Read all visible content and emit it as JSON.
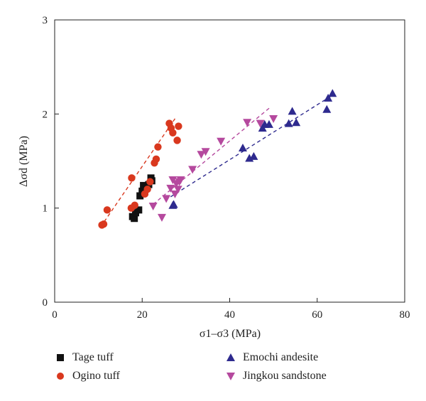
{
  "chart_data": {
    "type": "scatter",
    "xlabel": "σ1–σ3 (MPa)",
    "ylabel": "Δσd (MPa)",
    "xlim": [
      0,
      80
    ],
    "ylim": [
      0,
      3
    ],
    "xticks": [
      0,
      20,
      40,
      60,
      80
    ],
    "yticks": [
      0,
      1,
      2,
      3
    ],
    "grid": false,
    "legend_position": "bottom",
    "series": [
      {
        "name": "Tage tuff",
        "marker": "square",
        "color": "#111111",
        "points": [
          [
            17.8,
            0.91
          ],
          [
            18.2,
            0.89
          ],
          [
            18.5,
            0.95
          ],
          [
            19.2,
            0.98
          ],
          [
            19.5,
            1.13
          ],
          [
            20.0,
            1.18
          ],
          [
            20.3,
            1.24
          ],
          [
            21.0,
            1.22
          ],
          [
            21.5,
            1.25
          ],
          [
            22.0,
            1.32
          ],
          [
            22.2,
            1.29
          ]
        ]
      },
      {
        "name": "Ogino tuff",
        "marker": "circle",
        "color": "#d9381e",
        "points": [
          [
            10.8,
            0.82
          ],
          [
            11.2,
            0.83
          ],
          [
            12.0,
            0.98
          ],
          [
            17.5,
            1.0
          ],
          [
            17.6,
            1.32
          ],
          [
            18.3,
            1.03
          ],
          [
            20.6,
            1.15
          ],
          [
            21.2,
            1.2
          ],
          [
            21.8,
            1.28
          ],
          [
            22.8,
            1.48
          ],
          [
            23.2,
            1.52
          ],
          [
            23.6,
            1.65
          ],
          [
            26.2,
            1.9
          ],
          [
            26.6,
            1.85
          ],
          [
            27.0,
            1.8
          ],
          [
            28.0,
            1.72
          ],
          [
            28.3,
            1.87
          ]
        ],
        "fit": [
          [
            10.5,
            0.8
          ],
          [
            27.5,
            1.95
          ]
        ]
      },
      {
        "name": "Emochi andesite",
        "marker": "triangle-up",
        "color": "#2e2a8e",
        "points": [
          [
            27.0,
            1.03
          ],
          [
            27.2,
            1.04
          ],
          [
            43.0,
            1.64
          ],
          [
            44.5,
            1.53
          ],
          [
            45.5,
            1.55
          ],
          [
            47.5,
            1.85
          ],
          [
            48.0,
            1.89
          ],
          [
            49.0,
            1.89
          ],
          [
            53.5,
            1.9
          ],
          [
            54.3,
            2.03
          ],
          [
            55.2,
            1.91
          ],
          [
            62.2,
            2.05
          ],
          [
            62.5,
            2.17
          ],
          [
            63.5,
            2.22
          ]
        ],
        "fit": [
          [
            26.5,
            1.12
          ],
          [
            63.5,
            2.2
          ]
        ]
      },
      {
        "name": "Jingkou sandstone",
        "marker": "triangle-down",
        "color": "#b5499e",
        "points": [
          [
            22.5,
            1.02
          ],
          [
            24.5,
            0.9
          ],
          [
            25.5,
            1.1
          ],
          [
            26.5,
            1.21
          ],
          [
            27.0,
            1.3
          ],
          [
            27.5,
            1.15
          ],
          [
            27.8,
            1.26
          ],
          [
            28.2,
            1.2
          ],
          [
            28.5,
            1.28
          ],
          [
            28.8,
            1.3
          ],
          [
            31.5,
            1.41
          ],
          [
            33.5,
            1.57
          ],
          [
            34.5,
            1.6
          ],
          [
            38.0,
            1.71
          ],
          [
            44.0,
            1.91
          ],
          [
            47.0,
            1.9
          ],
          [
            50.0,
            1.95
          ]
        ],
        "fit": [
          [
            22.5,
            1.04
          ],
          [
            49.5,
            2.08
          ]
        ]
      }
    ]
  }
}
